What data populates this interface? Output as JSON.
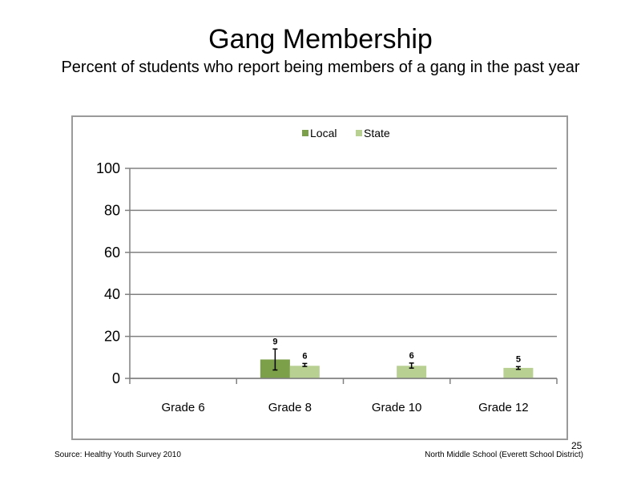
{
  "slide": {
    "title": "Gang Membership",
    "subtitle": "Percent of students who report being members of a gang in the past year",
    "source": "Source: Healthy Youth Survey 2010",
    "school": "North Middle School (Everett School District)",
    "page_number": "25"
  },
  "colors": {
    "local": "#7c9f4a",
    "state": "#b8d193",
    "grid": "#808080"
  },
  "chart_data": {
    "type": "bar",
    "title": "",
    "xlabel": "",
    "ylabel": "",
    "categories": [
      "Grade 6",
      "Grade 8",
      "Grade 10",
      "Grade 12"
    ],
    "ylim": [
      0,
      100
    ],
    "yticks": [
      0,
      20,
      40,
      60,
      80,
      100
    ],
    "grid": true,
    "legend_position": "top-center",
    "series": [
      {
        "name": "Local",
        "values": [
          null,
          9,
          null,
          null
        ],
        "labels": [
          null,
          "9",
          null,
          null
        ],
        "error": [
          null,
          [
            4,
            14
          ],
          null,
          null
        ]
      },
      {
        "name": "State",
        "values": [
          null,
          6,
          6,
          5
        ],
        "labels": [
          null,
          "6",
          "6",
          "5"
        ],
        "error": [
          null,
          [
            5.7,
            7.1
          ],
          [
            4.9,
            7.3
          ],
          [
            4.3,
            5.6
          ]
        ]
      }
    ]
  }
}
